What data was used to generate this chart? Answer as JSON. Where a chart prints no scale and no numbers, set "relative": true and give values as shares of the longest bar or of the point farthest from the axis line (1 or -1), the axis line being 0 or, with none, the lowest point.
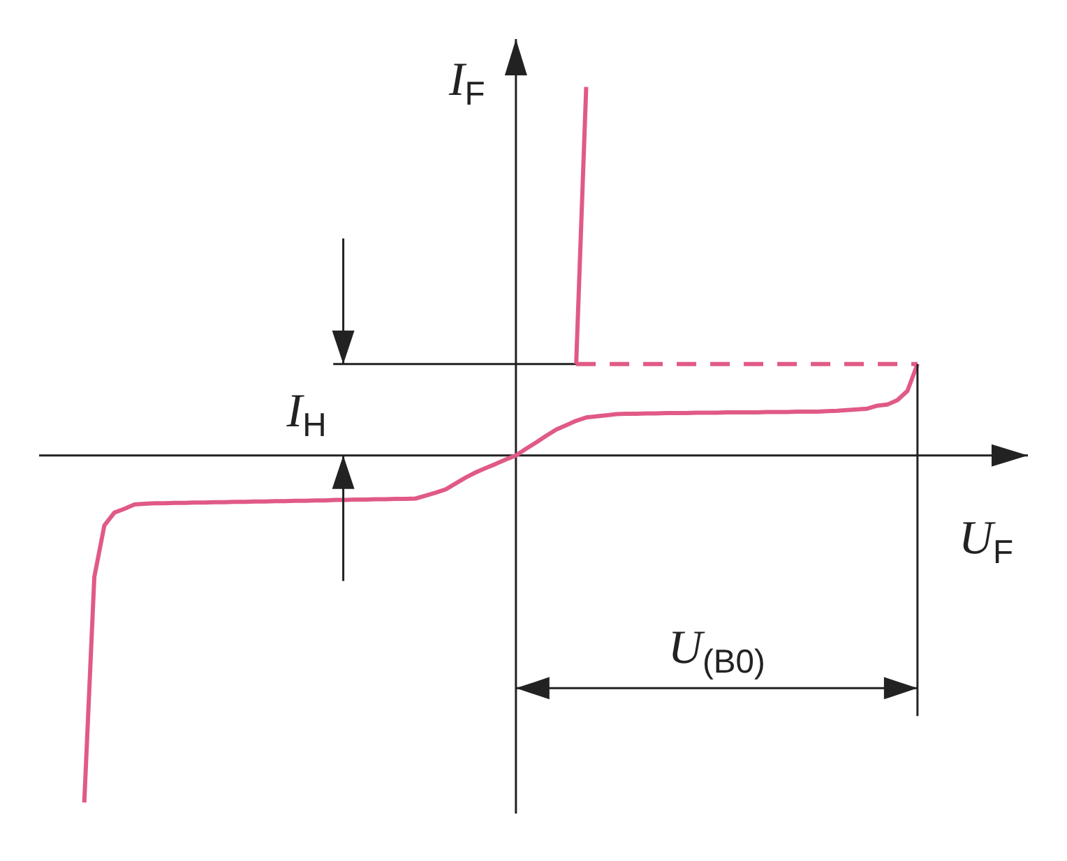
{
  "chart_data": {
    "type": "line",
    "relative": true,
    "xlabel": "U$_{F}$",
    "ylabel": "I$_{F}$",
    "categories": [
      null,
      null,
      null,
      null,
      null,
      null,
      null,
      null,
      null,
      null,
      null,
      null,
      null,
      null,
      null,
      null,
      null,
      null,
      null,
      null,
      null,
      null,
      null,
      null,
      null,
      null,
      null,
      null,
      null,
      null,
      null,
      null,
      null,
      null,
      null,
      null,
      null,
      null,
      null,
      null,
      null,
      null,
      null,
      null,
      null,
      null,
      null,
      null,
      null,
      null,
      null,
      null,
      null,
      null,
      null,
      null,
      null,
      null,
      null,
      null,
      null,
      null,
      null,
      null,
      null,
      null,
      null,
      null,
      null,
      null,
      null,
      null,
      null,
      null,
      null,
      null,
      null,
      null,
      null,
      null,
      null,
      null,
      null,
      null
    ],
    "series": [
      {
        "color": "#e05a85",
        "line_style": "solid",
        "values": [
          -0.942,
          -0.33,
          -0.19,
          -0.155,
          -0.145,
          -0.133,
          -0.131,
          -0.13,
          -0.13,
          -0.129,
          -0.129,
          -0.128,
          -0.128,
          -0.127,
          -0.127,
          -0.126,
          -0.126,
          -0.125,
          -0.125,
          -0.124,
          -0.124,
          -0.123,
          -0.123,
          -0.122,
          -0.122,
          -0.121,
          -0.121,
          -0.12,
          -0.12,
          -0.119,
          -0.119,
          -0.118,
          -0.118,
          -0.117,
          -0.109,
          -0.101,
          -0.092,
          -0.076,
          -0.06,
          -0.046,
          -0.034,
          -0.023,
          -0.011,
          0,
          0.018,
          0.035,
          0.053,
          0.07,
          0.082,
          0.094,
          0.103,
          0.106,
          0.109,
          0.112,
          0.113,
          0.113,
          0.114,
          0.114,
          0.115,
          0.115,
          0.115,
          0.116,
          0.116,
          0.116,
          0.117,
          0.117,
          0.117,
          0.117,
          0.118,
          0.118,
          0.118,
          0.119,
          0.119,
          0.119,
          0.12,
          0.121,
          0.123,
          0.125,
          0.127,
          0.135,
          0.138,
          0.15,
          0.175,
          0.248
        ]
      },
      {
        "color": "#e05a85",
        "line_style": "dashed",
        "values": [
          null,
          null,
          null,
          null,
          null,
          null,
          null,
          null,
          null,
          null,
          null,
          null,
          null,
          null,
          null,
          null,
          null,
          null,
          null,
          null,
          null,
          null,
          null,
          null,
          null,
          null,
          null,
          null,
          null,
          null,
          null,
          null,
          null,
          null,
          null,
          null,
          null,
          null,
          null,
          null,
          null,
          null,
          null,
          null,
          null,
          null,
          null,
          null,
          null,
          0.248,
          0.248,
          0.248,
          0.248,
          0.248,
          0.248,
          0.248,
          0.248,
          0.248,
          0.248,
          0.248,
          0.248,
          0.248,
          0.248,
          0.248,
          0.248,
          0.248,
          0.248,
          0.248,
          0.248,
          0.248,
          0.248,
          0.248,
          0.248,
          0.248,
          0.248,
          0.248,
          0.248,
          0.248,
          0.248,
          0.248,
          0.248,
          0.248,
          0.248,
          0.248
        ]
      },
      {
        "color": "#e05a85",
        "line_style": "solid",
        "values": [
          null,
          null,
          null,
          null,
          null,
          null,
          null,
          null,
          null,
          null,
          null,
          null,
          null,
          null,
          null,
          null,
          null,
          null,
          null,
          null,
          null,
          null,
          null,
          null,
          null,
          null,
          null,
          null,
          null,
          null,
          null,
          null,
          null,
          null,
          null,
          null,
          null,
          null,
          null,
          null,
          null,
          null,
          null,
          null,
          null,
          null,
          null,
          null,
          null,
          0.248,
          1.0,
          null,
          null,
          null,
          null,
          null,
          null,
          null,
          null,
          null,
          null,
          null,
          null,
          null,
          null,
          null,
          null,
          null,
          null,
          null,
          null,
          null,
          null,
          null,
          null,
          null,
          null,
          null,
          null,
          null,
          null,
          null,
          null,
          null
        ]
      }
    ],
    "ref_lines": [
      {
        "axis": "y",
        "value": 0.248,
        "label": "I$_{H}$",
        "color": "#222222"
      }
    ],
    "annotations": [
      "U$_{(B0)}$"
    ]
  }
}
